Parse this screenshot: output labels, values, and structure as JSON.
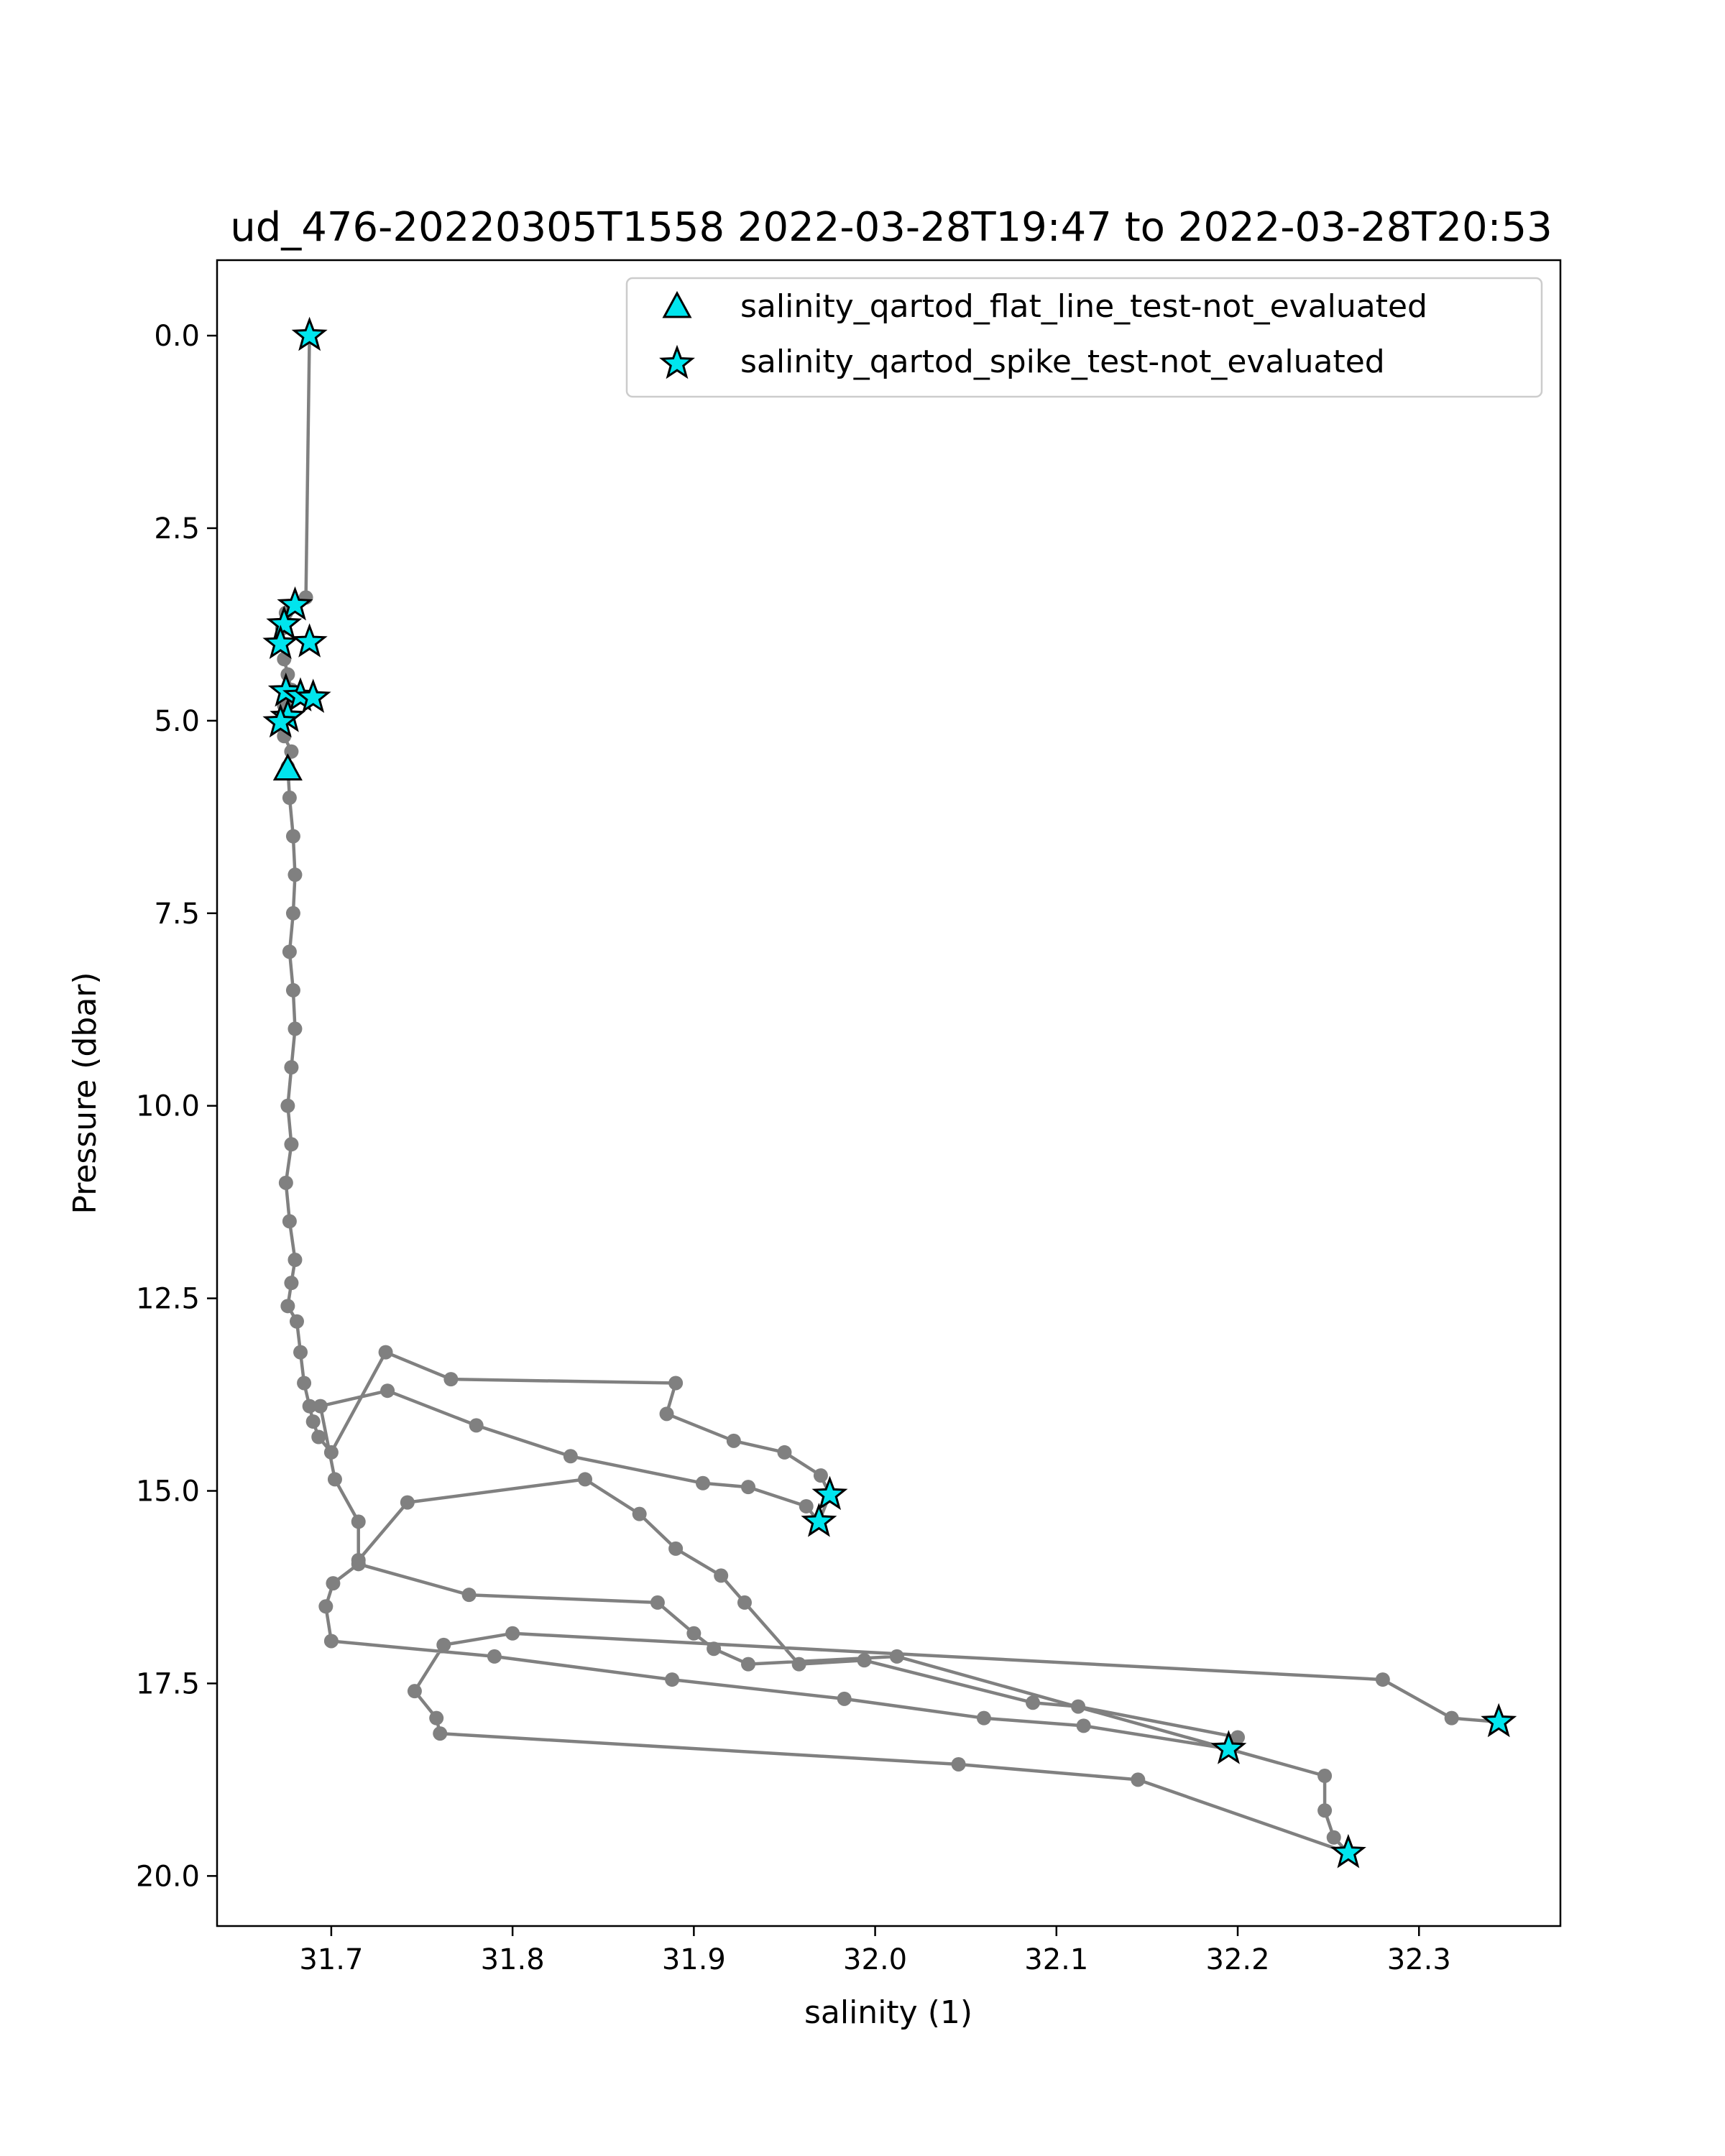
{
  "chart_data": {
    "type": "line",
    "title": "ud_476-20220305T1558 2022-03-28T19:47 to 2022-03-28T20:53",
    "xlabel": "salinity (1)",
    "ylabel": "Pressure (dbar)",
    "xlim": [
      31.637,
      32.378
    ],
    "ylim": [
      20.65,
      -0.98
    ],
    "y_inverted": true,
    "xticks": [
      "31.7",
      "31.8",
      "31.9",
      "32.0",
      "32.1",
      "32.2",
      "32.3"
    ],
    "yticks": [
      "0.0",
      "2.5",
      "5.0",
      "7.5",
      "10.0",
      "12.5",
      "15.0",
      "17.5",
      "20.0"
    ],
    "grid": false,
    "legend_position": "top-right",
    "colors": {
      "line": "#808080",
      "marker_fill": "#00e5ee",
      "marker_edge": "#000000"
    },
    "profile": {
      "x": [
        31.688,
        31.686,
        31.68,
        31.675,
        31.673,
        31.672,
        31.674,
        31.676,
        31.678,
        31.674,
        31.672,
        31.674,
        31.678,
        31.676,
        31.677,
        31.679,
        31.68,
        31.679,
        31.677,
        31.679,
        31.68,
        31.678,
        31.676,
        31.678,
        31.675,
        31.677,
        31.68,
        31.678,
        31.676,
        31.681,
        31.683,
        31.685,
        31.688,
        31.69,
        31.693,
        31.7,
        31.73,
        31.766,
        31.89,
        31.885,
        31.922,
        31.95,
        31.97,
        31.975,
        31.969,
        31.962,
        31.93,
        31.905,
        31.832,
        31.78,
        31.731,
        31.694,
        31.702,
        31.715,
        31.715,
        31.742,
        31.84,
        31.87,
        31.89,
        31.915,
        31.928,
        31.958,
        31.994,
        32.087,
        32.112,
        32.2,
        32.195,
        32.115,
        32.06,
        31.983,
        31.888,
        31.79,
        31.7,
        31.697,
        31.701,
        31.715,
        31.776,
        31.88,
        31.9,
        31.911,
        31.93,
        32.012,
        32.248,
        32.248,
        32.253,
        32.261,
        32.145,
        32.046,
        31.76,
        31.758,
        31.746,
        31.762,
        31.8,
        32.28,
        32.318,
        32.344
      ],
      "y": [
        0.0,
        3.4,
        3.5,
        3.6,
        3.8,
        4.0,
        4.2,
        4.4,
        4.6,
        4.8,
        5.0,
        5.2,
        5.4,
        5.6,
        6.0,
        6.5,
        7.0,
        7.5,
        8.0,
        8.5,
        9.0,
        9.5,
        10.0,
        10.5,
        11.0,
        11.5,
        12.0,
        12.3,
        12.6,
        12.8,
        13.2,
        13.6,
        13.9,
        14.1,
        14.3,
        14.5,
        13.2,
        13.55,
        13.6,
        14.0,
        14.35,
        14.5,
        14.8,
        15.05,
        15.4,
        15.2,
        14.95,
        14.9,
        14.55,
        14.15,
        13.7,
        13.9,
        14.85,
        15.4,
        15.9,
        15.15,
        14.85,
        15.3,
        15.75,
        16.1,
        16.45,
        17.25,
        17.2,
        17.75,
        17.8,
        18.2,
        18.35,
        18.05,
        17.95,
        17.7,
        17.45,
        17.15,
        16.95,
        16.5,
        16.2,
        15.95,
        16.35,
        16.45,
        16.85,
        17.05,
        17.25,
        17.15,
        18.7,
        19.15,
        19.5,
        19.7,
        18.75,
        18.55,
        18.15,
        17.95,
        17.6,
        17.0,
        16.85,
        17.45,
        17.95,
        18.0
      ]
    },
    "series": [
      {
        "name": "salinity_qartod_flat_line_test-not_evaluated",
        "marker": "triangle",
        "x": [
          31.676
        ],
        "y": [
          5.64
        ]
      },
      {
        "name": "salinity_qartod_spike_test-not_evaluated",
        "marker": "star",
        "x": [
          31.688,
          31.68,
          31.674,
          31.672,
          31.688,
          31.675,
          31.683,
          31.69,
          31.676,
          31.672,
          31.975,
          31.969,
          32.195,
          32.344,
          32.261
        ],
        "y": [
          0.0,
          3.5,
          3.75,
          4.0,
          3.98,
          4.62,
          4.68,
          4.7,
          4.95,
          5.02,
          15.05,
          15.4,
          18.35,
          18.0,
          19.7
        ]
      }
    ]
  }
}
